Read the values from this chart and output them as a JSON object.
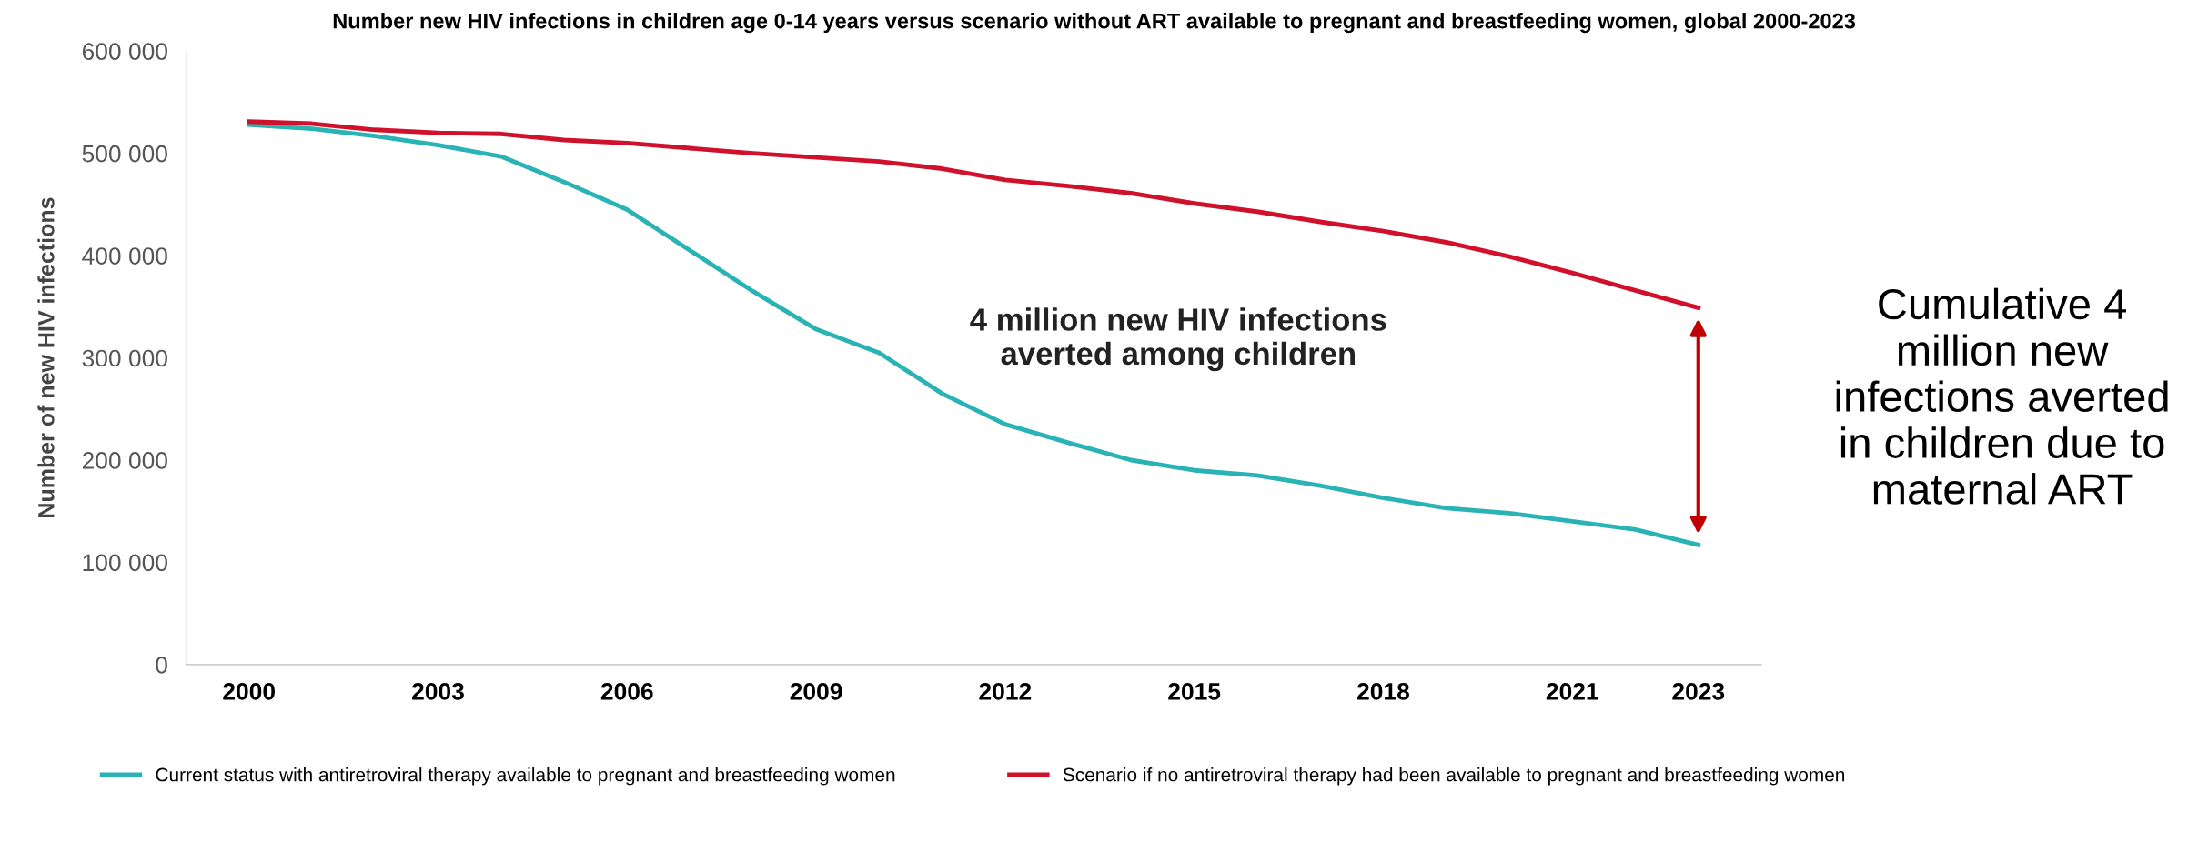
{
  "chart_data": {
    "type": "line",
    "title": "Number new HIV infections in children age 0-14 years versus scenario without ART available to pregnant and breastfeeding women, global 2000-2023",
    "ylabel": "Number of new HIV infections",
    "x": [
      2000,
      2001,
      2002,
      2003,
      2004,
      2005,
      2006,
      2007,
      2008,
      2009,
      2010,
      2011,
      2012,
      2013,
      2014,
      2015,
      2016,
      2017,
      2018,
      2019,
      2020,
      2021,
      2022,
      2023
    ],
    "series": [
      {
        "name": "Current status with antiretroviral therapy available to pregnant and breastfeeding women",
        "color": "#2ab3b5",
        "values": [
          528000,
          524000,
          517000,
          508000,
          497000,
          472000,
          445000,
          405000,
          365000,
          328000,
          305000,
          265000,
          235000,
          217000,
          200000,
          190000,
          185000,
          175000,
          163000,
          153000,
          148000,
          140000,
          132000,
          117000
        ]
      },
      {
        "name": "Scenario if no antiretroviral therapy had been available to pregnant and breastfeeding women",
        "color": "#d0112b",
        "values": [
          531000,
          529000,
          523000,
          520000,
          519000,
          513000,
          510000,
          505000,
          500000,
          496000,
          492000,
          485000,
          474000,
          468000,
          461000,
          451000,
          443000,
          433000,
          424000,
          413000,
          399000,
          383000,
          366000,
          349000
        ]
      }
    ],
    "xlim": [
      1999,
      2024
    ],
    "xticks": [
      2000,
      2003,
      2006,
      2009,
      2012,
      2015,
      2018,
      2021,
      2023
    ],
    "ylim": [
      0,
      600000
    ],
    "yticks": [
      {
        "value": 0,
        "label": "0"
      },
      {
        "value": 100000,
        "label": "100 000"
      },
      {
        "value": 200000,
        "label": "200 000"
      },
      {
        "value": 300000,
        "label": "300 000"
      },
      {
        "value": 400000,
        "label": "400 000"
      },
      {
        "value": 500000,
        "label": "500 000"
      },
      {
        "value": 600000,
        "label": "600 000"
      }
    ],
    "annotations": [
      "4 million new HIV infections\naverted among children",
      "Cumulative 4 million new infections averted in children due to maternal ART"
    ],
    "legend": "bottom",
    "grid": false,
    "marker": "none",
    "line_style": "solid"
  }
}
